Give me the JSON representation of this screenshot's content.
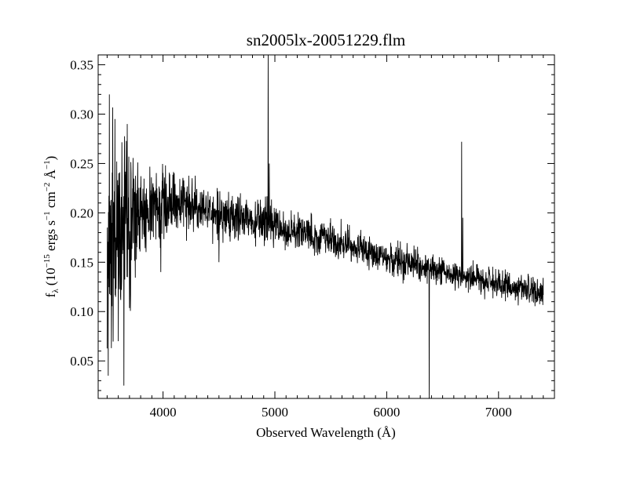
{
  "chart_data": {
    "type": "line",
    "title": "sn2005lx-20051229.flm",
    "xlabel": "Observed Wavelength (Å)",
    "ylabel": {
      "prefix": "f",
      "sub": "λ",
      "part1": " (10",
      "exp1": "−15",
      "part2": " ergs s",
      "exp2": "−1",
      "part3": " cm",
      "exp3": "−2",
      "part4": " Å",
      "exp4": "−1",
      "part5": ")"
    },
    "xlim": [
      3420,
      7500
    ],
    "ylim": [
      0.012,
      0.36
    ],
    "xticks": [
      4000,
      5000,
      6000,
      7000
    ],
    "xtick_labels": [
      "4000",
      "5000",
      "6000",
      "7000"
    ],
    "yticks": [
      0.05,
      0.1,
      0.15,
      0.2,
      0.25,
      0.3,
      0.35
    ],
    "ytick_labels": [
      "0.05",
      "0.10",
      "0.15",
      "0.20",
      "0.25",
      "0.30",
      "0.35"
    ],
    "grid": false,
    "series": [
      {
        "x_start": 3500,
        "x_end": 7400,
        "continuum": [
          [
            3500,
            0.165
          ],
          [
            3650,
            0.19
          ],
          [
            3800,
            0.205
          ],
          [
            4000,
            0.212
          ],
          [
            4300,
            0.205
          ],
          [
            4600,
            0.195
          ],
          [
            4900,
            0.19
          ],
          [
            5200,
            0.182
          ],
          [
            5500,
            0.174
          ],
          [
            5800,
            0.162
          ],
          [
            6100,
            0.152
          ],
          [
            6350,
            0.145
          ],
          [
            6500,
            0.14
          ],
          [
            6700,
            0.135
          ],
          [
            7000,
            0.128
          ],
          [
            7400,
            0.118
          ]
        ],
        "noise_profile": [
          [
            3500,
            0.055
          ],
          [
            3700,
            0.04
          ],
          [
            3850,
            0.022
          ],
          [
            4100,
            0.015
          ],
          [
            4600,
            0.012
          ],
          [
            5200,
            0.009
          ],
          [
            6000,
            0.008
          ],
          [
            7000,
            0.007
          ],
          [
            7400,
            0.008
          ]
        ],
        "features": [
          {
            "x": 3510,
            "y": 0.035
          },
          {
            "x": 3520,
            "y": 0.32
          },
          {
            "x": 3570,
            "y": 0.295
          },
          {
            "x": 3600,
            "y": 0.07
          },
          {
            "x": 3650,
            "y": 0.025
          },
          {
            "x": 3680,
            "y": 0.29
          },
          {
            "x": 3980,
            "y": 0.14
          },
          {
            "x": 4500,
            "y": 0.15
          },
          {
            "x": 4940,
            "y": 0.36
          },
          {
            "x": 4950,
            "y": 0.25
          },
          {
            "x": 6380,
            "y": 0.012
          },
          {
            "x": 6670,
            "y": 0.272
          },
          {
            "x": 6680,
            "y": 0.195
          }
        ]
      }
    ]
  }
}
